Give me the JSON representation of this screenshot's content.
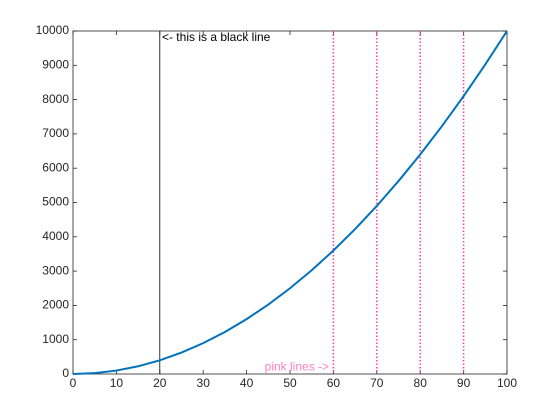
{
  "chart_data": {
    "type": "line",
    "x": [
      0,
      5,
      10,
      15,
      20,
      25,
      30,
      35,
      40,
      45,
      50,
      55,
      60,
      65,
      70,
      75,
      80,
      85,
      90,
      95,
      100
    ],
    "series": [
      {
        "color": "#0072bd",
        "values": [
          0,
          25,
          100,
          225,
          400,
          625,
          900,
          1225,
          1600,
          2025,
          2500,
          3025,
          3600,
          4225,
          4900,
          5625,
          6400,
          7225,
          8100,
          9025,
          10000
        ]
      }
    ],
    "xlim": [
      0,
      100
    ],
    "xticks": [
      0,
      10,
      20,
      30,
      40,
      50,
      60,
      70,
      80,
      90,
      100
    ],
    "ylim": [
      0,
      10000
    ],
    "yticks": [
      0,
      1000,
      2000,
      3000,
      4000,
      5000,
      6000,
      7000,
      8000,
      9000,
      10000
    ],
    "vlines": [
      {
        "x": 20,
        "color": "#000000",
        "style": "solid"
      },
      {
        "x": 60,
        "color": "#ff40a0",
        "style": "dotted"
      },
      {
        "x": 70,
        "color": "#ff40a0",
        "style": "dotted"
      },
      {
        "x": 80,
        "color": "#ff40a0",
        "style": "dotted"
      },
      {
        "x": 90,
        "color": "#ff40a0",
        "style": "dotted"
      }
    ],
    "annotations": [
      {
        "text": "<- this is a black line",
        "x": 20.5,
        "y": 9800,
        "color": "#000000",
        "anchor": "start"
      },
      {
        "text": "pink lines ->",
        "x": 59,
        "y": 200,
        "color": "#ff80c0",
        "anchor": "end"
      }
    ]
  }
}
